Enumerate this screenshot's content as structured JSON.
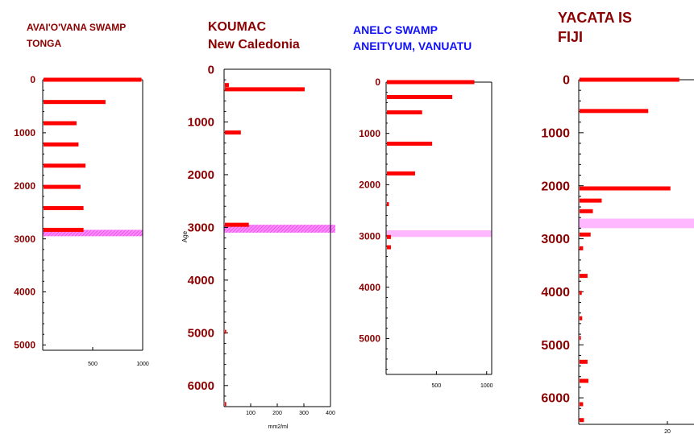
{
  "colors": {
    "bar": "#ff0000",
    "dark_red": "#8b0000",
    "blue": "#1010ff",
    "band": "#ff66ff",
    "axis": "#000000"
  },
  "chart_data": [
    {
      "type": "bar",
      "orientation": "horizontal",
      "title_lines": [
        "AVAI'O'VANA SWAMP",
        "TONGA"
      ],
      "title_color": "dark_red",
      "ylabel": "",
      "xlabel": "",
      "ylim": [
        0,
        5100
      ],
      "xlim": [
        0,
        1000
      ],
      "y_inverted": true,
      "yticks": [
        0,
        1000,
        2000,
        3000,
        4000,
        5000
      ],
      "xticks": [
        500,
        1000
      ],
      "highlight_band": [
        2830,
        2950
      ],
      "points": [
        {
          "age": 0,
          "value": 980
        },
        {
          "age": 420,
          "value": 620
        },
        {
          "age": 820,
          "value": 330
        },
        {
          "age": 1220,
          "value": 350
        },
        {
          "age": 1620,
          "value": 420
        },
        {
          "age": 2020,
          "value": 370
        },
        {
          "age": 2420,
          "value": 400
        },
        {
          "age": 2830,
          "value": 400
        }
      ]
    },
    {
      "type": "bar",
      "orientation": "horizontal",
      "title_lines": [
        "KOUMAC",
        "New Caledonia"
      ],
      "title_color": "dark_red",
      "ylabel": "Age",
      "xlabel": "mm2/ml",
      "ylim": [
        0,
        6400
      ],
      "xlim": [
        0,
        400
      ],
      "y_inverted": true,
      "yticks": [
        0,
        1000,
        2000,
        3000,
        4000,
        5000,
        6000
      ],
      "xticks": [
        100,
        200,
        300,
        400
      ],
      "highlight_band": [
        2950,
        3100
      ],
      "points": [
        {
          "age": 300,
          "value": 15
        },
        {
          "age": 380,
          "value": 300
        },
        {
          "age": 1200,
          "value": 60
        },
        {
          "age": 2950,
          "value": 90
        },
        {
          "age": 4980,
          "value": 5
        },
        {
          "age": 6350,
          "value": 5
        }
      ]
    },
    {
      "type": "bar",
      "orientation": "horizontal",
      "title_lines": [
        "ANELC SWAMP",
        "ANEITYUM, VANUATU"
      ],
      "title_color": "blue",
      "ylabel": "",
      "xlabel": "",
      "ylim": [
        0,
        5700
      ],
      "xlim": [
        0,
        1050
      ],
      "y_inverted": true,
      "yticks": [
        0,
        1000,
        2000,
        3000,
        4000,
        5000
      ],
      "xticks": [
        500,
        1000
      ],
      "highlight_band": [
        2890,
        3020
      ],
      "points": [
        {
          "age": 0,
          "value": 870
        },
        {
          "age": 290,
          "value": 650
        },
        {
          "age": 590,
          "value": 350
        },
        {
          "age": 1200,
          "value": 450
        },
        {
          "age": 1780,
          "value": 280
        },
        {
          "age": 2380,
          "value": 20
        },
        {
          "age": 3020,
          "value": 40
        },
        {
          "age": 3220,
          "value": 40
        }
      ]
    },
    {
      "type": "bar",
      "orientation": "horizontal",
      "title_lines": [
        "YACATA IS",
        "FIJI"
      ],
      "title_color": "dark_red",
      "ylabel": "",
      "xlabel": "",
      "ylim": [
        0,
        6500
      ],
      "xlim": [
        0,
        26
      ],
      "y_inverted": true,
      "yticks": [
        0,
        1000,
        2000,
        3000,
        4000,
        5000,
        6000
      ],
      "xticks": [
        20
      ],
      "highlight_band": [
        2620,
        2800
      ],
      "points": [
        {
          "age": 0,
          "value": 22.5
        },
        {
          "age": 590,
          "value": 15.5
        },
        {
          "age": 2050,
          "value": 20.5
        },
        {
          "age": 2280,
          "value": 5
        },
        {
          "age": 2480,
          "value": 3
        },
        {
          "age": 2920,
          "value": 2.5
        },
        {
          "age": 3180,
          "value": 0.8
        },
        {
          "age": 3700,
          "value": 1.8
        },
        {
          "age": 4020,
          "value": 0.5
        },
        {
          "age": 4500,
          "value": 0.6
        },
        {
          "age": 4870,
          "value": 0.3
        },
        {
          "age": 5320,
          "value": 1.8
        },
        {
          "age": 5680,
          "value": 2
        },
        {
          "age": 6120,
          "value": 0.8
        },
        {
          "age": 6420,
          "value": 1
        }
      ]
    }
  ]
}
